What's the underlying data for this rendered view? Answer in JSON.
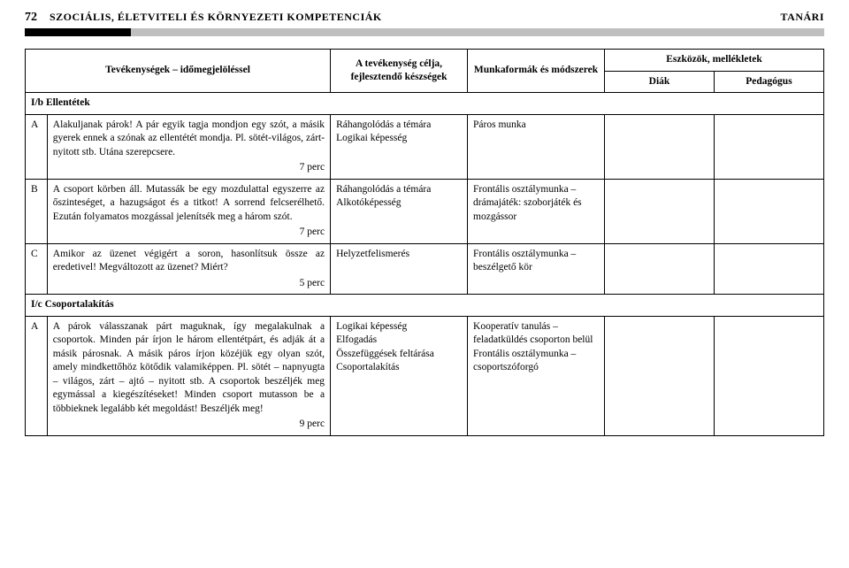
{
  "header": {
    "page_num": "72",
    "title": "SZOCIÁLIS, ÉLETVITELI ÉS KÖRNYEZETI KOMPETENCIÁK",
    "right": "TANÁRI"
  },
  "columns": {
    "activity": "Tevékenységek – időmegjelöléssel",
    "goal": "A tevékenység célja, fejlesztendő készségek",
    "workforms": "Munkaformák és módszerek",
    "tools": "Eszközök, mellékletek",
    "diak": "Diák",
    "pedagogus": "Pedagógus"
  },
  "sections": {
    "ib": "I/b Ellentétek",
    "ic": "I/c Csoportalakítás"
  },
  "rows": {
    "A1": {
      "letter": "A",
      "activity": "Alakuljanak párok! A pár egyik tagja mondjon egy szót, a másik gyerek ennek a szónak az ellentétét mondja. Pl. sötét-világos, zárt-nyitott stb. Utána szerepcsere.",
      "time": "7 perc",
      "goal": "Ráhangolódás a témára\nLogikai képesség",
      "work": "Páros munka"
    },
    "B": {
      "letter": "B",
      "activity": "A csoport körben áll. Mutassák be egy mozdulattal egyszerre az őszinteséget, a hazugságot és a titkot! A sorrend felcserélhető. Ezután folyamatos mozgással jelenítsék meg a három szót.",
      "time": "7 perc",
      "goal": "Ráhangolódás a témára\nAlkotóképesség",
      "work": "Frontális osztálymunka – drámajáték: szoborjáték és mozgássor"
    },
    "C": {
      "letter": "C",
      "activity": "Amikor az üzenet végigért a soron, hasonlítsuk össze az eredetivel! Megváltozott az üzenet? Miért?",
      "time": "5 perc",
      "goal": "Helyzetfelismerés",
      "work": "Frontális osztálymunka – beszélgető kör"
    },
    "A2": {
      "letter": "A",
      "activity": "A párok válasszanak párt maguknak, így megalakulnak a csoportok. Minden pár írjon le három ellentétpárt, és adják át a másik párosnak. A másik páros írjon közéjük egy olyan szót, amely mindkettőhöz kötődik valamiképpen. Pl. sötét – napnyugta – világos, zárt – ajtó – nyitott stb. A csoportok beszéljék meg egymással a kiegészítéseket! Minden csoport mutasson be a többieknek legalább két megoldást! Beszéljék meg!",
      "time": "9 perc",
      "goal": "Logikai képesség\nElfogadás\nÖsszefüggések feltárása\nCsoportalakítás",
      "work": "Kooperatív tanulás – feladatküldés csoporton belül\nFrontális osztálymunka – csoportszóforgó"
    }
  }
}
